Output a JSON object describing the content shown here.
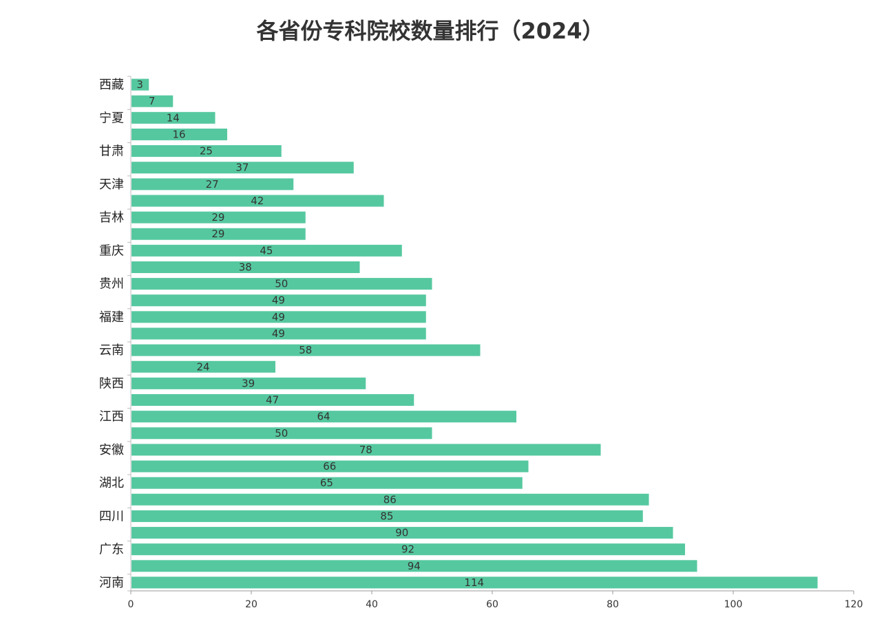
{
  "chart_data": {
    "type": "bar",
    "orientation": "horizontal",
    "title": "各省份专科院校数量排行（2024）",
    "categories": [
      "西藏",
      "",
      "宁夏",
      "",
      "甘肃",
      "",
      "天津",
      "",
      "吉林",
      "",
      "重庆",
      "",
      "贵州",
      "",
      "福建",
      "",
      "云南",
      "",
      "陕西",
      "",
      "江西",
      "",
      "安徽",
      "",
      "湖北",
      "",
      "四川",
      "",
      "广东",
      "",
      "河南"
    ],
    "values": [
      3,
      7,
      14,
      16,
      25,
      37,
      27,
      42,
      29,
      29,
      45,
      38,
      50,
      49,
      49,
      49,
      58,
      24,
      39,
      47,
      64,
      50,
      78,
      66,
      65,
      86,
      85,
      90,
      92,
      94,
      114
    ],
    "xlim": [
      0,
      120
    ],
    "xticks": [
      0,
      20,
      40,
      60,
      80,
      100,
      120
    ],
    "xlabel": "",
    "ylabel": "",
    "grid": false,
    "bar_color": "#56c8a0"
  }
}
